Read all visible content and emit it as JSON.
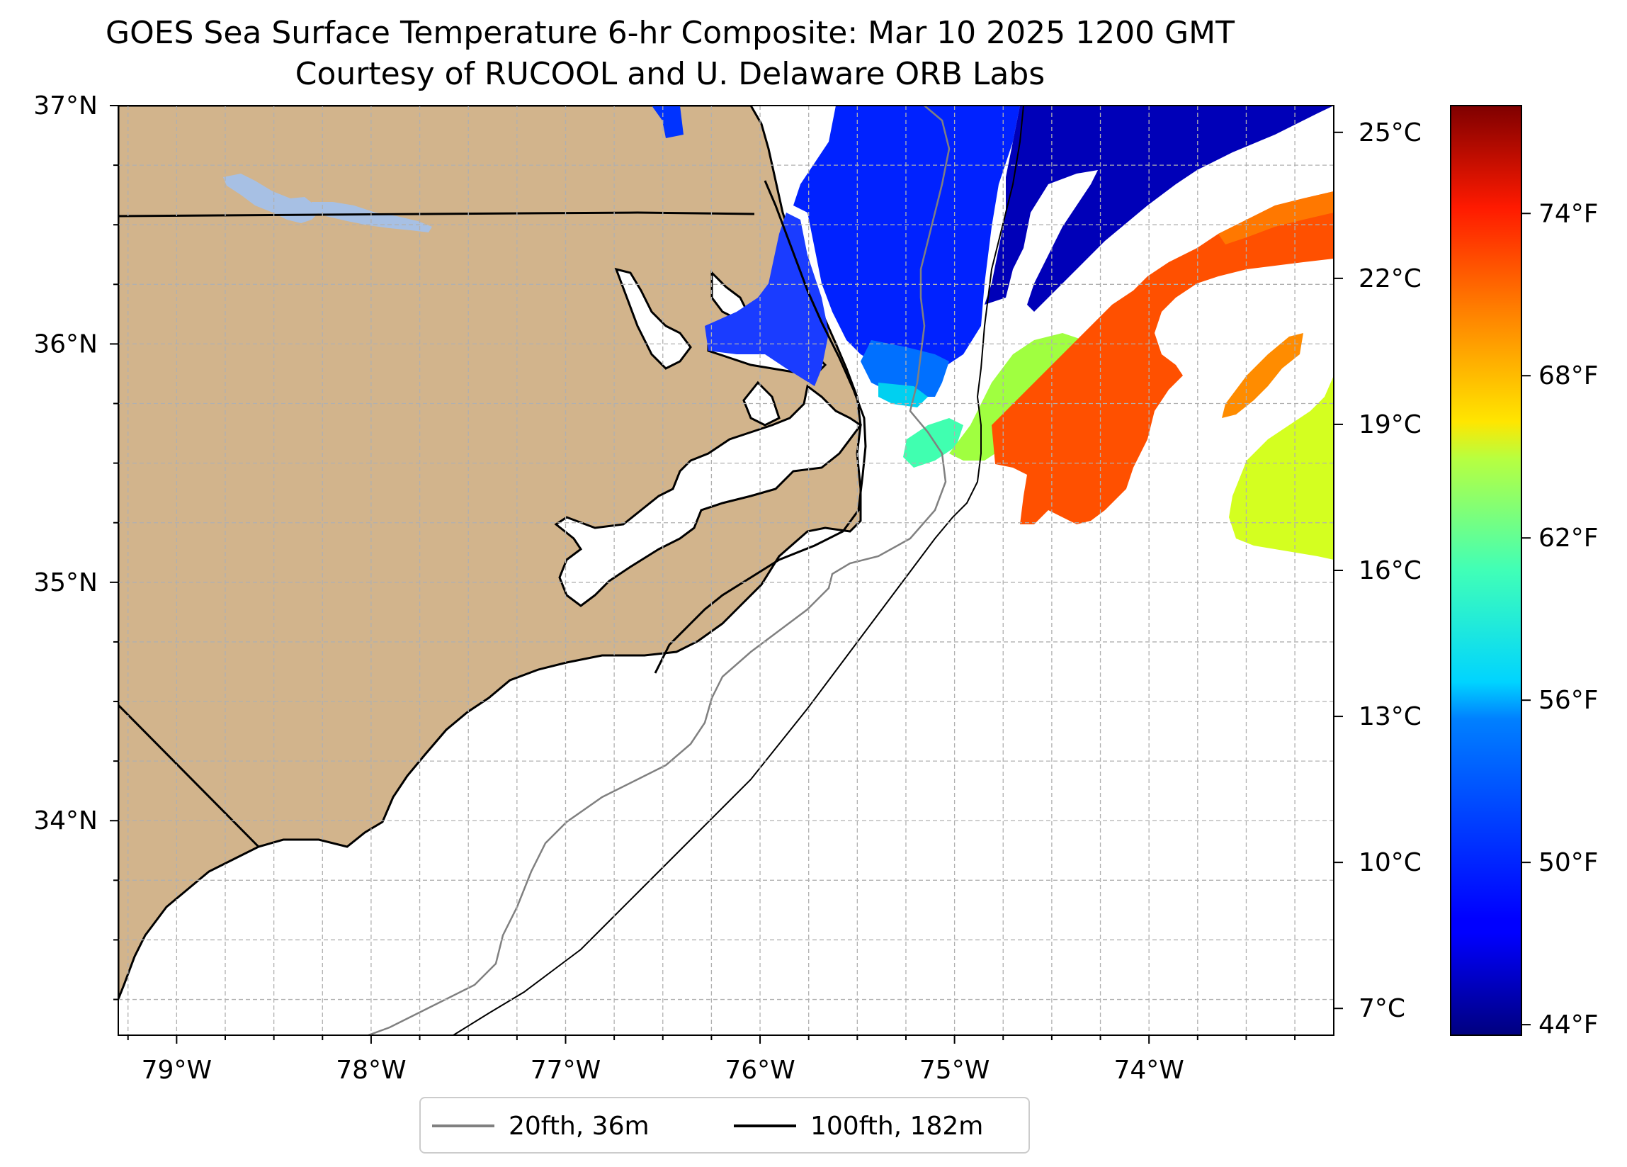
{
  "title": {
    "line1": "GOES Sea Surface Temperature 6-hr Composite: Mar 10 2025 1200 GMT",
    "line2": "Courtesy of RUCOOL and U. Delaware ORB Labs"
  },
  "map": {
    "lon_range": [
      -79.3,
      -73.05
    ],
    "lat_range": [
      33.1,
      37.0
    ],
    "lon_ticks": [
      "79°W",
      "78°W",
      "77°W",
      "76°W",
      "75°W",
      "74°W"
    ],
    "lat_ticks": [
      "37°N",
      "36°N",
      "35°N",
      "34°N"
    ],
    "colors": {
      "land": "#d2b48c",
      "lakes": "#a7c0e4",
      "gridlines": "#b0b0b0",
      "isobath_20fth": "#808080",
      "isobath_100fth": "#000000"
    }
  },
  "colorbar": {
    "colormap": "jet",
    "celsius_ticks": [
      "25°C",
      "22°C",
      "19°C",
      "16°C",
      "13°C",
      "10°C",
      "7°C"
    ],
    "fahrenheit_ticks": [
      "74°F",
      "68°F",
      "62°F",
      "56°F",
      "50°F",
      "44°F"
    ]
  },
  "legend": {
    "items": [
      {
        "label": "20fth, 36m",
        "color": "#808080"
      },
      {
        "label": "100fth, 182m",
        "color": "#000000"
      }
    ]
  }
}
